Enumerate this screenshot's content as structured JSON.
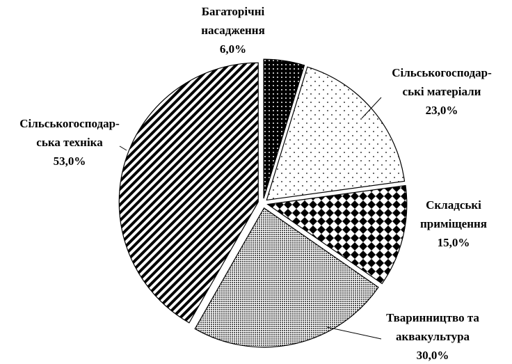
{
  "chart_data": {
    "type": "pie",
    "categories": [
      "Багаторічні\nнасадження",
      "Сільськогосподар-\nські матеріали",
      "Складські\nприміщення",
      "Тваринництво та\nаквакультура",
      "Сільськогосподар-\nська техніка"
    ],
    "values": [
      6,
      23,
      15,
      30,
      53
    ],
    "value_labels": [
      "6,0%",
      "23,0%",
      "15,0%",
      "30,0%",
      "53,0%"
    ]
  }
}
